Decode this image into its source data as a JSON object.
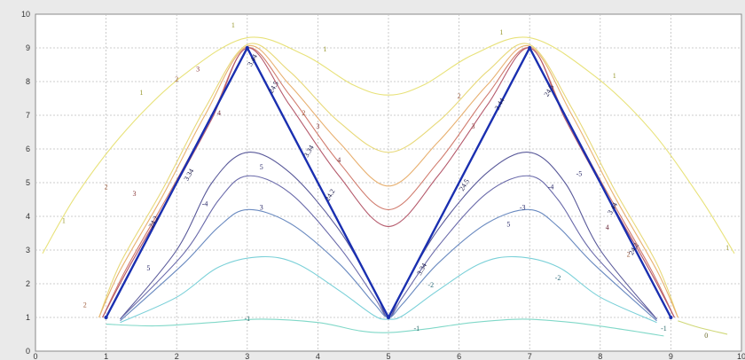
{
  "chart_data": {
    "type": "line",
    "title": "",
    "xlabel": "",
    "ylabel": "",
    "xlim": [
      0,
      10
    ],
    "ylim": [
      0,
      10
    ],
    "grid": true,
    "x_ticks": [
      "0",
      "1",
      "2",
      "3",
      "4",
      "5",
      "6",
      "7",
      "8",
      "9",
      "10"
    ],
    "y_ticks": [
      "0",
      "1",
      "2",
      "3",
      "4",
      "5",
      "6",
      "7",
      "8",
      "9",
      "10"
    ],
    "colors": {
      "background": "#eaeaea",
      "plot_area": "#ffffff",
      "grid": "#bfbfbf",
      "main_path": "#1a2fb0"
    },
    "main_path": {
      "name": "",
      "x": [
        1,
        3,
        5,
        7,
        9
      ],
      "y": [
        1,
        9,
        1,
        9,
        1
      ]
    },
    "contours": [
      {
        "level": "1",
        "color": "#e8e27a",
        "points": [
          [
            0.1,
            2.9
          ],
          [
            0.6,
            4.7
          ],
          [
            1.3,
            6.6
          ],
          [
            2.1,
            8.2
          ],
          [
            3.0,
            9.3
          ],
          [
            3.8,
            8.8
          ],
          [
            4.5,
            7.9
          ],
          [
            5.0,
            7.6
          ],
          [
            5.5,
            7.9
          ],
          [
            6.2,
            8.8
          ],
          [
            7.0,
            9.3
          ],
          [
            7.9,
            8.2
          ],
          [
            8.7,
            6.6
          ],
          [
            9.4,
            4.6
          ],
          [
            9.9,
            2.9
          ]
        ]
      },
      {
        "level": "1",
        "color": "#e8d979",
        "points": [
          [
            0.9,
            1.0
          ],
          [
            1.2,
            2.6
          ],
          [
            1.8,
            4.8
          ],
          [
            2.4,
            7.2
          ],
          [
            3.0,
            9.1
          ],
          [
            3.6,
            8.3
          ],
          [
            4.3,
            6.8
          ],
          [
            5.0,
            5.9
          ],
          [
            5.7,
            6.8
          ],
          [
            6.4,
            8.3
          ],
          [
            7.0,
            9.1
          ],
          [
            7.6,
            7.2
          ],
          [
            8.2,
            4.8
          ],
          [
            8.8,
            2.6
          ],
          [
            9.1,
            1.0
          ]
        ]
      },
      {
        "level": "2",
        "color": "#e8b070",
        "points": [
          [
            0.9,
            1.0
          ],
          [
            1.2,
            2.4
          ],
          [
            1.8,
            4.6
          ],
          [
            2.4,
            7.0
          ],
          [
            3.0,
            9.05
          ],
          [
            3.6,
            7.9
          ],
          [
            4.3,
            6.2
          ],
          [
            5.0,
            4.9
          ],
          [
            5.7,
            6.2
          ],
          [
            6.4,
            7.9
          ],
          [
            7.0,
            9.05
          ],
          [
            7.6,
            7.0
          ],
          [
            8.2,
            4.6
          ],
          [
            8.8,
            2.4
          ],
          [
            9.1,
            1.0
          ]
        ]
      },
      {
        "level": "3",
        "color": "#d07a6c",
        "points": [
          [
            0.95,
            1.0
          ],
          [
            1.3,
            2.5
          ],
          [
            1.9,
            4.7
          ],
          [
            2.5,
            7.0
          ],
          [
            3.0,
            9.0
          ],
          [
            3.6,
            7.6
          ],
          [
            4.3,
            5.6
          ],
          [
            5.0,
            4.2
          ],
          [
            5.7,
            5.6
          ],
          [
            6.4,
            7.6
          ],
          [
            7.0,
            9.0
          ],
          [
            7.5,
            7.0
          ],
          [
            8.1,
            4.7
          ],
          [
            8.7,
            2.5
          ],
          [
            9.05,
            1.0
          ]
        ]
      },
      {
        "level": "4",
        "color": "#b55a6c",
        "points": [
          [
            0.95,
            1.0
          ],
          [
            1.3,
            2.4
          ],
          [
            1.9,
            4.6
          ],
          [
            2.5,
            6.9
          ],
          [
            3.0,
            9.0
          ],
          [
            3.6,
            7.3
          ],
          [
            4.3,
            5.2
          ],
          [
            5.0,
            3.7
          ],
          [
            5.7,
            5.2
          ],
          [
            6.4,
            7.3
          ],
          [
            7.0,
            9.0
          ],
          [
            7.5,
            6.9
          ],
          [
            8.1,
            4.6
          ],
          [
            8.7,
            2.4
          ],
          [
            9.05,
            1.0
          ]
        ]
      },
      {
        "level": "5",
        "color": "#5a5a9a",
        "points": [
          [
            1.2,
            0.95
          ],
          [
            2.0,
            3.0
          ],
          [
            2.5,
            5.0
          ],
          [
            3.0,
            5.9
          ],
          [
            3.6,
            5.3
          ],
          [
            4.3,
            3.6
          ],
          [
            4.8,
            1.8
          ],
          [
            5.0,
            1.0
          ],
          [
            5.2,
            1.8
          ],
          [
            5.7,
            3.6
          ],
          [
            6.4,
            5.3
          ],
          [
            7.0,
            5.9
          ],
          [
            7.5,
            5.0
          ],
          [
            8.0,
            3.0
          ],
          [
            8.8,
            0.95
          ]
        ]
      },
      {
        "level": "4",
        "color": "#6a6aaa",
        "points": [
          [
            1.2,
            0.95
          ],
          [
            2.1,
            2.9
          ],
          [
            2.6,
            4.5
          ],
          [
            3.0,
            5.2
          ],
          [
            3.6,
            4.7
          ],
          [
            4.3,
            3.1
          ],
          [
            4.8,
            1.6
          ],
          [
            5.0,
            1.0
          ],
          [
            5.2,
            1.6
          ],
          [
            5.7,
            3.1
          ],
          [
            6.4,
            4.7
          ],
          [
            7.0,
            5.2
          ],
          [
            7.4,
            4.5
          ],
          [
            7.9,
            2.9
          ],
          [
            8.8,
            0.95
          ]
        ]
      },
      {
        "level": "3",
        "color": "#6a8ac0",
        "points": [
          [
            1.2,
            0.9
          ],
          [
            2.1,
            2.6
          ],
          [
            2.6,
            3.7
          ],
          [
            3.0,
            4.2
          ],
          [
            3.6,
            3.8
          ],
          [
            4.3,
            2.6
          ],
          [
            4.8,
            1.4
          ],
          [
            5.0,
            1.0
          ],
          [
            5.2,
            1.4
          ],
          [
            5.7,
            2.6
          ],
          [
            6.4,
            3.8
          ],
          [
            7.0,
            4.2
          ],
          [
            7.4,
            3.7
          ],
          [
            7.9,
            2.6
          ],
          [
            8.8,
            0.9
          ]
        ]
      },
      {
        "level": "2",
        "color": "#7ad0d8",
        "points": [
          [
            1.2,
            0.85
          ],
          [
            2.0,
            1.6
          ],
          [
            2.6,
            2.5
          ],
          [
            3.2,
            2.8
          ],
          [
            3.7,
            2.6
          ],
          [
            4.3,
            1.8
          ],
          [
            4.8,
            1.05
          ],
          [
            5.0,
            0.95
          ],
          [
            5.2,
            1.05
          ],
          [
            5.7,
            1.8
          ],
          [
            6.3,
            2.6
          ],
          [
            6.8,
            2.8
          ],
          [
            7.4,
            2.5
          ],
          [
            8.0,
            1.6
          ],
          [
            8.8,
            0.85
          ]
        ]
      },
      {
        "level": "-1",
        "color": "#80d8c8",
        "points": [
          [
            1.0,
            0.8
          ],
          [
            1.7,
            0.75
          ],
          [
            2.5,
            0.85
          ],
          [
            3.2,
            0.95
          ],
          [
            4.0,
            0.85
          ],
          [
            4.6,
            0.6
          ],
          [
            5.0,
            0.55
          ],
          [
            5.5,
            0.65
          ],
          [
            6.2,
            0.85
          ],
          [
            6.9,
            0.95
          ],
          [
            7.6,
            0.85
          ],
          [
            8.3,
            0.65
          ],
          [
            8.9,
            0.45
          ]
        ]
      },
      {
        "level": "0",
        "color": "#d0d878",
        "points": [
          [
            9.1,
            0.9
          ],
          [
            9.4,
            0.7
          ],
          [
            9.8,
            0.5
          ]
        ]
      }
    ],
    "contour_labels": [
      {
        "text": "1",
        "x": 2.8,
        "y": 9.6,
        "color": "#9a9a30"
      },
      {
        "text": "1",
        "x": 1.5,
        "y": 7.6,
        "color": "#9a9a30"
      },
      {
        "text": "1",
        "x": 4.1,
        "y": 8.9,
        "color": "#9a9a30"
      },
      {
        "text": "1",
        "x": 0.4,
        "y": 3.8,
        "color": "#9a9a30"
      },
      {
        "text": "1",
        "x": 6.6,
        "y": 9.4,
        "color": "#9a9a30"
      },
      {
        "text": "1",
        "x": 8.2,
        "y": 8.1,
        "color": "#9a9a30"
      },
      {
        "text": "1",
        "x": 9.8,
        "y": 3.0,
        "color": "#9a9a30"
      },
      {
        "text": "2",
        "x": 2.0,
        "y": 8.0,
        "color": "#a06040"
      },
      {
        "text": "2",
        "x": 1.0,
        "y": 4.8,
        "color": "#a06040"
      },
      {
        "text": "2",
        "x": 3.8,
        "y": 7.0,
        "color": "#a06040"
      },
      {
        "text": "2",
        "x": 6.0,
        "y": 7.5,
        "color": "#a06040"
      },
      {
        "text": "2",
        "x": 8.4,
        "y": 2.8,
        "color": "#a06040"
      },
      {
        "text": "2",
        "x": 0.7,
        "y": 1.3,
        "color": "#a06040"
      },
      {
        "text": "3",
        "x": 2.3,
        "y": 8.3,
        "color": "#8a3a3a"
      },
      {
        "text": "3",
        "x": 1.4,
        "y": 4.6,
        "color": "#8a3a3a"
      },
      {
        "text": "3",
        "x": 4.0,
        "y": 6.6,
        "color": "#8a3a3a"
      },
      {
        "text": "3",
        "x": 6.2,
        "y": 6.6,
        "color": "#8a3a3a"
      },
      {
        "text": "3",
        "x": 3.2,
        "y": 4.2,
        "color": "#2a2a6a"
      },
      {
        "text": "-3",
        "x": 6.9,
        "y": 4.2,
        "color": "#2a2a6a"
      },
      {
        "text": "4",
        "x": 2.6,
        "y": 7.0,
        "color": "#6a2a3a"
      },
      {
        "text": "4",
        "x": 4.3,
        "y": 5.6,
        "color": "#6a2a3a"
      },
      {
        "text": "4",
        "x": 8.1,
        "y": 3.6,
        "color": "#6a2a3a"
      },
      {
        "text": "-4",
        "x": 2.4,
        "y": 4.3,
        "color": "#2a2a6a"
      },
      {
        "text": "-4",
        "x": 7.3,
        "y": 4.8,
        "color": "#2a2a6a"
      },
      {
        "text": "5",
        "x": 3.2,
        "y": 5.4,
        "color": "#2a2a6a"
      },
      {
        "text": "5",
        "x": 6.7,
        "y": 3.7,
        "color": "#2a2a6a"
      },
      {
        "text": "5",
        "x": 1.6,
        "y": 2.4,
        "color": "#2a2a6a"
      },
      {
        "text": "-5",
        "x": 7.7,
        "y": 5.2,
        "color": "#2a2a6a"
      },
      {
        "text": "-2",
        "x": 5.6,
        "y": 1.9,
        "color": "#2a6a7a"
      },
      {
        "text": "-2",
        "x": 7.4,
        "y": 2.1,
        "color": "#2a6a7a"
      },
      {
        "text": "-1",
        "x": 3.0,
        "y": 0.9,
        "color": "#2a6a6a"
      },
      {
        "text": "-1",
        "x": 5.4,
        "y": 0.6,
        "color": "#2a6a6a"
      },
      {
        "text": "-1",
        "x": 8.9,
        "y": 0.6,
        "color": "#2a6a6a"
      },
      {
        "text": "0",
        "x": 9.5,
        "y": 0.4,
        "color": "#6a6a2a"
      }
    ],
    "path_labels": [
      {
        "text": "3.34",
        "x": 2.2,
        "y": 5.2
      },
      {
        "text": "24.2",
        "x": 1.7,
        "y": 3.8
      },
      {
        "text": "3.44",
        "x": 3.1,
        "y": 8.6
      },
      {
        "text": "24.5",
        "x": 3.4,
        "y": 7.8
      },
      {
        "text": "3.34",
        "x": 3.9,
        "y": 5.9
      },
      {
        "text": "24.2",
        "x": 4.2,
        "y": 4.6
      },
      {
        "text": "3.34",
        "x": 5.5,
        "y": 2.4
      },
      {
        "text": "24.5",
        "x": 6.1,
        "y": 4.9
      },
      {
        "text": "3.44",
        "x": 6.6,
        "y": 7.3
      },
      {
        "text": "24.5",
        "x": 7.3,
        "y": 7.7
      },
      {
        "text": "3.44",
        "x": 8.2,
        "y": 4.2
      },
      {
        "text": "24.2",
        "x": 8.5,
        "y": 3.0
      }
    ]
  }
}
